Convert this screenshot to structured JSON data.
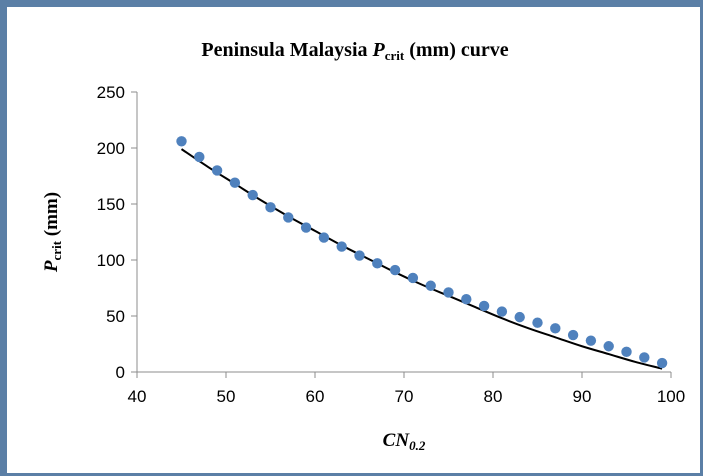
{
  "chart_data": {
    "type": "scatter",
    "title": {
      "prefix": "Peninsula Malaysia ",
      "var": "P",
      "sub": "crit",
      "suffix": " (mm) curve"
    },
    "xlabel": {
      "var": "CN",
      "sub": "0.2"
    },
    "ylabel": {
      "var": "P",
      "sub": "crit",
      "suffix": " (mm)"
    },
    "xlim": [
      40,
      100
    ],
    "ylim": [
      0,
      250
    ],
    "x_ticks": [
      40,
      50,
      60,
      70,
      80,
      90,
      100
    ],
    "y_ticks": [
      0,
      50,
      100,
      150,
      200,
      250
    ],
    "x_tick_labels": [
      "40",
      "50",
      "60",
      "70",
      "80",
      "90",
      "100"
    ],
    "y_tick_labels": [
      "0",
      "50",
      "100",
      "150",
      "200",
      "250"
    ],
    "grid": false,
    "legend": "none",
    "colors": {
      "points": "#4f81bd",
      "trend": "#000000",
      "frame": "#5b7fa6"
    },
    "series": [
      {
        "kind": "points",
        "x": [
          45,
          47,
          49,
          51,
          53,
          55,
          57,
          59,
          61,
          63,
          65,
          67,
          69,
          71,
          73,
          75,
          77,
          79,
          81,
          83,
          85,
          87,
          89,
          91,
          93,
          95,
          97,
          99
        ],
        "y": [
          206,
          192,
          180,
          169,
          158,
          147,
          138,
          129,
          120,
          112,
          104,
          97,
          91,
          84,
          77,
          71,
          65,
          59,
          54,
          49,
          44,
          39,
          33,
          28,
          23,
          18,
          13,
          8
        ]
      },
      {
        "kind": "trendline",
        "x": [
          45,
          48,
          51,
          54,
          57,
          60,
          63,
          66,
          69,
          72,
          75,
          78,
          81,
          84,
          87,
          90,
          93,
          96,
          99
        ],
        "y": [
          199,
          183,
          168,
          153,
          139,
          126,
          113,
          101,
          89,
          78,
          68,
          58,
          48,
          39,
          31,
          23,
          16,
          9,
          3
        ]
      }
    ]
  }
}
